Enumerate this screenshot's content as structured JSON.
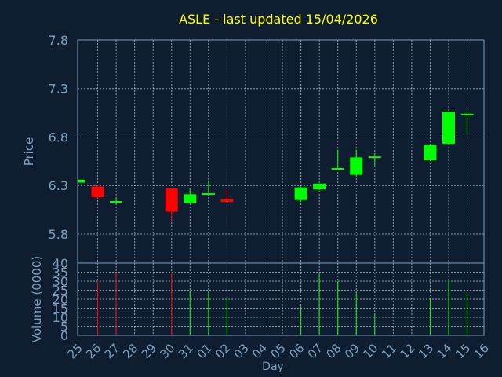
{
  "chart_data": [
    {
      "type": "candlestick",
      "title": "ASLE - last updated 15/04/2026",
      "ylabel": "Price",
      "ylim": [
        5.5,
        7.8
      ],
      "y_ticks": [
        5.8,
        6.3,
        6.8,
        7.3,
        7.8
      ],
      "y_tick_labels": [
        "5.8",
        "6.3",
        "6.8",
        "7.3",
        "7.8"
      ],
      "grid": true,
      "colors": {
        "up": "#00ff00",
        "down": "#ff0000",
        "title": "#ffff00",
        "axis": "#7f9fbf",
        "background": "#0e1e30"
      },
      "candles": [
        {
          "x": "25",
          "open": 6.33,
          "high": 6.36,
          "low": 6.33,
          "close": 6.36
        },
        {
          "x": "26",
          "open": 6.29,
          "high": 6.3,
          "low": 6.16,
          "close": 6.18
        },
        {
          "x": "27",
          "open": 6.14,
          "high": 6.18,
          "low": 6.11,
          "close": 6.14
        },
        {
          "x": "30",
          "open": 6.27,
          "high": 6.27,
          "low": 5.93,
          "close": 6.03
        },
        {
          "x": "31",
          "open": 6.12,
          "high": 6.27,
          "low": 6.12,
          "close": 6.21
        },
        {
          "x": "01",
          "open": 6.21,
          "high": 6.35,
          "low": 6.21,
          "close": 6.22
        },
        {
          "x": "02",
          "open": 6.16,
          "high": 6.27,
          "low": 6.13,
          "close": 6.13
        },
        {
          "x": "06",
          "open": 6.15,
          "high": 6.29,
          "low": 6.13,
          "close": 6.28
        },
        {
          "x": "07",
          "open": 6.26,
          "high": 6.32,
          "low": 6.25,
          "close": 6.32
        },
        {
          "x": "08",
          "open": 6.48,
          "high": 6.67,
          "low": 6.46,
          "close": 6.48
        },
        {
          "x": "09",
          "open": 6.41,
          "high": 6.67,
          "low": 6.4,
          "close": 6.59
        },
        {
          "x": "10",
          "open": 6.6,
          "high": 6.62,
          "low": 6.5,
          "close": 6.6
        },
        {
          "x": "13",
          "open": 6.56,
          "high": 6.73,
          "low": 6.56,
          "close": 6.72
        },
        {
          "x": "14",
          "open": 6.73,
          "high": 7.06,
          "low": 6.73,
          "close": 7.06
        },
        {
          "x": "15",
          "open": 7.04,
          "high": 7.07,
          "low": 6.84,
          "close": 7.04
        }
      ]
    },
    {
      "type": "bar",
      "xlabel": "Day",
      "ylabel": "Volume (0000)",
      "ylim": [
        0,
        40
      ],
      "y_ticks": [
        0,
        5,
        10,
        15,
        20,
        25,
        30,
        35,
        40
      ],
      "y_tick_labels": [
        "0",
        "5",
        "10",
        "15",
        "20",
        "25",
        "30",
        "35",
        "40"
      ],
      "categories": [
        "25",
        "26",
        "27",
        "28",
        "29",
        "30",
        "31",
        "01",
        "02",
        "03",
        "04",
        "05",
        "06",
        "07",
        "08",
        "09",
        "10",
        "11",
        "12",
        "13",
        "14",
        "15",
        "16"
      ],
      "volumes": [
        {
          "x": "26",
          "value": 30,
          "direction": "down"
        },
        {
          "x": "27",
          "value": 35,
          "direction": "down"
        },
        {
          "x": "30",
          "value": 35,
          "direction": "down"
        },
        {
          "x": "31",
          "value": 25,
          "direction": "up"
        },
        {
          "x": "01",
          "value": 24,
          "direction": "up"
        },
        {
          "x": "02",
          "value": 21,
          "direction": "up"
        },
        {
          "x": "06",
          "value": 16,
          "direction": "up"
        },
        {
          "x": "07",
          "value": 34,
          "direction": "up"
        },
        {
          "x": "08",
          "value": 30,
          "direction": "up"
        },
        {
          "x": "09",
          "value": 24,
          "direction": "up"
        },
        {
          "x": "10",
          "value": 12,
          "direction": "up"
        },
        {
          "x": "13",
          "value": 20,
          "direction": "up"
        },
        {
          "x": "14",
          "value": 30,
          "direction": "up"
        },
        {
          "x": "15",
          "value": 24,
          "direction": "up"
        }
      ]
    }
  ]
}
